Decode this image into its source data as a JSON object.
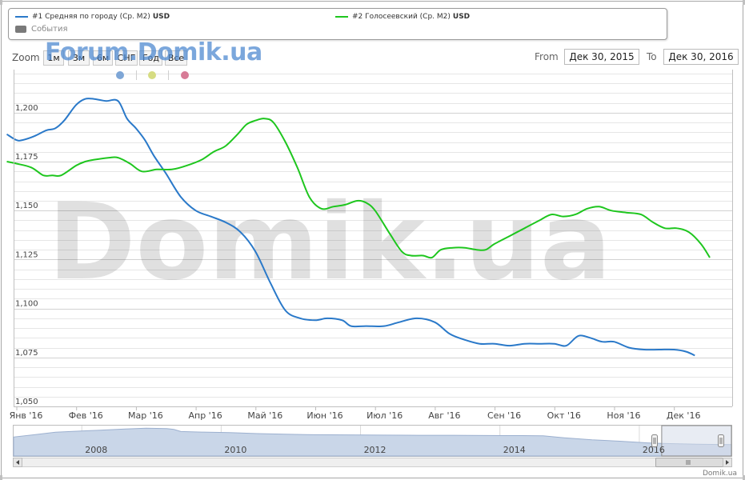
{
  "legend": {
    "series1": {
      "label": "#1 Средняя по городу (Ср. М2)",
      "unit": "USD"
    },
    "series2": {
      "label": "#2 Голосеевский (Ср. М2)",
      "unit": "USD"
    },
    "events_label": "События"
  },
  "toolbar": {
    "zoom_label": "Zoom",
    "buttons": [
      "1м",
      "3м",
      "6м",
      "СНГ",
      "Год",
      "Все"
    ],
    "from_label": "From",
    "from_value": "Дек 30, 2015",
    "to_label": "To",
    "to_value": "Дек 30, 2016"
  },
  "watermark_top": "Forum.Domik.ua",
  "watermark_big": "Domik.ua",
  "credit": "Domik.ua",
  "navigator": {
    "years": [
      "2008",
      "2010",
      "2012",
      "2014",
      "2016"
    ]
  },
  "event_markers": [
    {
      "color": "#7ea6d6"
    },
    {
      "color": "#d6dc82"
    },
    {
      "color": "#d77b96"
    }
  ],
  "colors": {
    "series1": "#2a79c9",
    "series2": "#1ec61e",
    "navigator_area": "#c9d6e8"
  },
  "chart_data": {
    "type": "line",
    "x_labels": [
      "Янв '16",
      "Фев '16",
      "Мар '16",
      "Апр '16",
      "Май '16",
      "Июн '16",
      "Июл '16",
      "Авг '16",
      "Сен '16",
      "Окт '16",
      "Ноя '16",
      "Дек '16"
    ],
    "y_ticks": [
      "1,050",
      "1,075",
      "1,100",
      "1,125",
      "1,150",
      "1,175",
      "1,200"
    ],
    "ylim": [
      1050,
      1222
    ],
    "xlim": [
      0,
      11.84
    ],
    "grid": true,
    "legend_position": "top",
    "series": [
      {
        "name": "#1 Средняя по городу (Ср. М2)",
        "color": "#2a79c9",
        "points": [
          [
            -0.16,
            1189
          ],
          [
            0,
            1186
          ],
          [
            0.1,
            1186
          ],
          [
            0.3,
            1188
          ],
          [
            0.5,
            1191
          ],
          [
            0.65,
            1192
          ],
          [
            0.8,
            1196
          ],
          [
            1,
            1204
          ],
          [
            1.15,
            1207
          ],
          [
            1.3,
            1207
          ],
          [
            1.5,
            1206
          ],
          [
            1.7,
            1206
          ],
          [
            1.85,
            1197
          ],
          [
            2,
            1192
          ],
          [
            2.15,
            1186
          ],
          [
            2.3,
            1178
          ],
          [
            2.5,
            1169
          ],
          [
            2.75,
            1157
          ],
          [
            3,
            1150
          ],
          [
            3.25,
            1147
          ],
          [
            3.5,
            1144
          ],
          [
            3.75,
            1139
          ],
          [
            4,
            1129
          ],
          [
            4.25,
            1113
          ],
          [
            4.5,
            1099
          ],
          [
            4.75,
            1095
          ],
          [
            5,
            1094
          ],
          [
            5.2,
            1095
          ],
          [
            5.45,
            1094
          ],
          [
            5.6,
            1091
          ],
          [
            5.85,
            1091
          ],
          [
            6.15,
            1091
          ],
          [
            6.4,
            1093
          ],
          [
            6.7,
            1095
          ],
          [
            7,
            1093
          ],
          [
            7.25,
            1087
          ],
          [
            7.5,
            1084
          ],
          [
            7.75,
            1082
          ],
          [
            8,
            1082
          ],
          [
            8.25,
            1081
          ],
          [
            8.5,
            1082
          ],
          [
            8.75,
            1082
          ],
          [
            9,
            1082
          ],
          [
            9.2,
            1081
          ],
          [
            9.4,
            1086
          ],
          [
            9.6,
            1085
          ],
          [
            9.8,
            1083
          ],
          [
            10,
            1083
          ],
          [
            10.25,
            1080
          ],
          [
            10.5,
            1079
          ],
          [
            10.75,
            1079
          ],
          [
            11,
            1079
          ],
          [
            11.2,
            1078
          ],
          [
            11.35,
            1076
          ]
        ]
      },
      {
        "name": "#2 Голосеевский (Ср. М2)",
        "color": "#1ec61e",
        "points": [
          [
            -0.16,
            1175
          ],
          [
            0,
            1174
          ],
          [
            0.25,
            1172
          ],
          [
            0.45,
            1168
          ],
          [
            0.6,
            1168
          ],
          [
            0.75,
            1168
          ],
          [
            1,
            1173
          ],
          [
            1.15,
            1175
          ],
          [
            1.3,
            1176
          ],
          [
            1.55,
            1177
          ],
          [
            1.7,
            1177
          ],
          [
            1.9,
            1174
          ],
          [
            2.1,
            1170
          ],
          [
            2.35,
            1171
          ],
          [
            2.6,
            1171
          ],
          [
            2.85,
            1173
          ],
          [
            3.1,
            1176
          ],
          [
            3.3,
            1180
          ],
          [
            3.5,
            1183
          ],
          [
            3.7,
            1189
          ],
          [
            3.85,
            1194
          ],
          [
            4,
            1196
          ],
          [
            4.15,
            1197
          ],
          [
            4.3,
            1195
          ],
          [
            4.5,
            1185
          ],
          [
            4.7,
            1172
          ],
          [
            4.9,
            1157
          ],
          [
            5.1,
            1151
          ],
          [
            5.3,
            1152
          ],
          [
            5.5,
            1153
          ],
          [
            5.7,
            1155
          ],
          [
            5.85,
            1154
          ],
          [
            6,
            1150
          ],
          [
            6.25,
            1138
          ],
          [
            6.45,
            1129
          ],
          [
            6.6,
            1127
          ],
          [
            6.8,
            1127
          ],
          [
            6.95,
            1126
          ],
          [
            7.1,
            1130
          ],
          [
            7.3,
            1131
          ],
          [
            7.5,
            1131
          ],
          [
            7.7,
            1130
          ],
          [
            7.85,
            1130
          ],
          [
            8,
            1133
          ],
          [
            8.25,
            1137
          ],
          [
            8.5,
            1141
          ],
          [
            8.75,
            1145
          ],
          [
            8.95,
            1148
          ],
          [
            9.15,
            1147
          ],
          [
            9.35,
            1148
          ],
          [
            9.55,
            1151
          ],
          [
            9.75,
            1152
          ],
          [
            9.95,
            1150
          ],
          [
            10.2,
            1149
          ],
          [
            10.45,
            1148
          ],
          [
            10.65,
            1144
          ],
          [
            10.85,
            1141
          ],
          [
            11.05,
            1141
          ],
          [
            11.25,
            1139
          ],
          [
            11.45,
            1133
          ],
          [
            11.6,
            1126
          ]
        ]
      }
    ],
    "navigator": {
      "x_range": [
        2006.7,
        2017.0
      ],
      "y_range": [
        0,
        1600
      ],
      "points": [
        [
          2006.7,
          1000
        ],
        [
          2007.0,
          1120
        ],
        [
          2007.3,
          1250
        ],
        [
          2007.7,
          1320
        ],
        [
          2008.0,
          1370
        ],
        [
          2008.3,
          1420
        ],
        [
          2008.6,
          1460
        ],
        [
          2008.9,
          1440
        ],
        [
          2009.0,
          1400
        ],
        [
          2009.1,
          1290
        ],
        [
          2009.4,
          1260
        ],
        [
          2009.8,
          1230
        ],
        [
          2010.2,
          1180
        ],
        [
          2010.6,
          1150
        ],
        [
          2011.0,
          1120
        ],
        [
          2011.5,
          1110
        ],
        [
          2012.0,
          1100
        ],
        [
          2012.5,
          1090
        ],
        [
          2013.0,
          1090
        ],
        [
          2013.5,
          1080
        ],
        [
          2014.0,
          1075
        ],
        [
          2014.3,
          1060
        ],
        [
          2014.6,
          960
        ],
        [
          2015.0,
          850
        ],
        [
          2015.4,
          780
        ],
        [
          2015.8,
          690
        ],
        [
          2016.0,
          660
        ],
        [
          2016.5,
          620
        ],
        [
          2017.0,
          600
        ]
      ],
      "selection": [
        2016.0,
        2017.0
      ]
    }
  }
}
